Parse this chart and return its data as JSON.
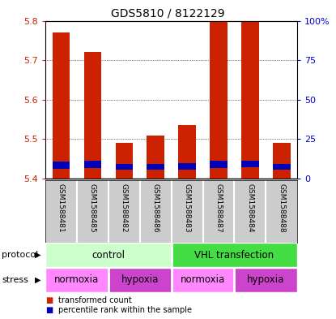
{
  "title": "GDS5810 / 8122129",
  "samples": [
    "GSM1588481",
    "GSM1588485",
    "GSM1588482",
    "GSM1588486",
    "GSM1588483",
    "GSM1588487",
    "GSM1588484",
    "GSM1588488"
  ],
  "red_values": [
    5.77,
    5.72,
    5.49,
    5.51,
    5.535,
    5.8,
    5.8,
    5.49
  ],
  "blue_values": [
    5.425,
    5.427,
    5.422,
    5.422,
    5.423,
    5.427,
    5.428,
    5.422
  ],
  "blue_heights": [
    0.018,
    0.018,
    0.016,
    0.016,
    0.016,
    0.018,
    0.018,
    0.016
  ],
  "base": 5.4,
  "ylim": [
    5.4,
    5.8
  ],
  "y_ticks_left": [
    5.4,
    5.5,
    5.6,
    5.7,
    5.8
  ],
  "y_ticks_right": [
    0,
    25,
    50,
    75,
    100
  ],
  "y_tick_right_labels": [
    "0",
    "25",
    "50",
    "75",
    "100%"
  ],
  "red_color": "#cc2200",
  "blue_color": "#0000bb",
  "bar_width": 0.55,
  "protocol_color_light": "#ccffcc",
  "protocol_color_dark": "#44dd44",
  "stress_color_light": "#ff88ff",
  "stress_color_dark": "#cc44cc",
  "tick_color_left": "#cc2200",
  "tick_color_right": "#0000cc",
  "bg_color": "#cccccc",
  "title_fontsize": 10
}
